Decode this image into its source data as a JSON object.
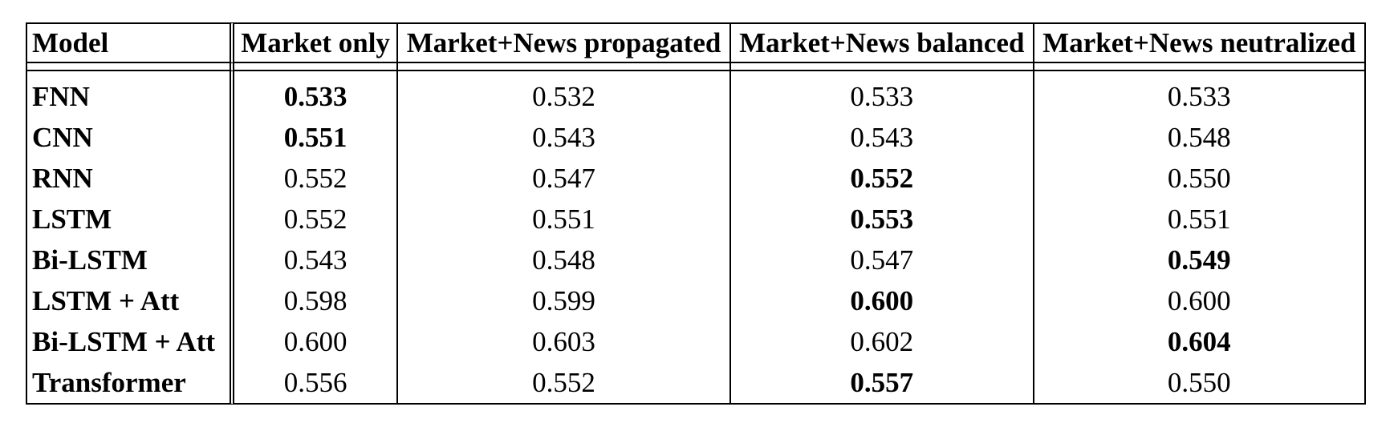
{
  "table": {
    "headers": [
      "Model",
      "Market only",
      "Market+News propagated",
      "Market+News balanced",
      "Market+News neutralized"
    ],
    "rows": [
      {
        "model": "FNN",
        "values": [
          "0.533",
          "0.532",
          "0.533",
          "0.533"
        ],
        "bold": [
          true,
          false,
          false,
          false
        ]
      },
      {
        "model": "CNN",
        "values": [
          "0.551",
          "0.543",
          "0.543",
          "0.548"
        ],
        "bold": [
          true,
          false,
          false,
          false
        ]
      },
      {
        "model": "RNN",
        "values": [
          "0.552",
          "0.547",
          "0.552",
          "0.550"
        ],
        "bold": [
          false,
          false,
          true,
          false
        ]
      },
      {
        "model": "LSTM",
        "values": [
          "0.552",
          "0.551",
          "0.553",
          "0.551"
        ],
        "bold": [
          false,
          false,
          true,
          false
        ]
      },
      {
        "model": "Bi-LSTM",
        "values": [
          "0.543",
          "0.548",
          "0.547",
          "0.549"
        ],
        "bold": [
          false,
          false,
          false,
          true
        ]
      },
      {
        "model": "LSTM + Att",
        "values": [
          "0.598",
          "0.599",
          "0.600",
          "0.600"
        ],
        "bold": [
          false,
          false,
          true,
          false
        ]
      },
      {
        "model": "Bi-LSTM + Att",
        "values": [
          "0.600",
          "0.603",
          "0.602",
          "0.604"
        ],
        "bold": [
          false,
          false,
          false,
          true
        ]
      },
      {
        "model": "Transformer",
        "values": [
          "0.556",
          "0.552",
          "0.557",
          "0.550"
        ],
        "bold": [
          false,
          false,
          true,
          false
        ]
      }
    ]
  }
}
